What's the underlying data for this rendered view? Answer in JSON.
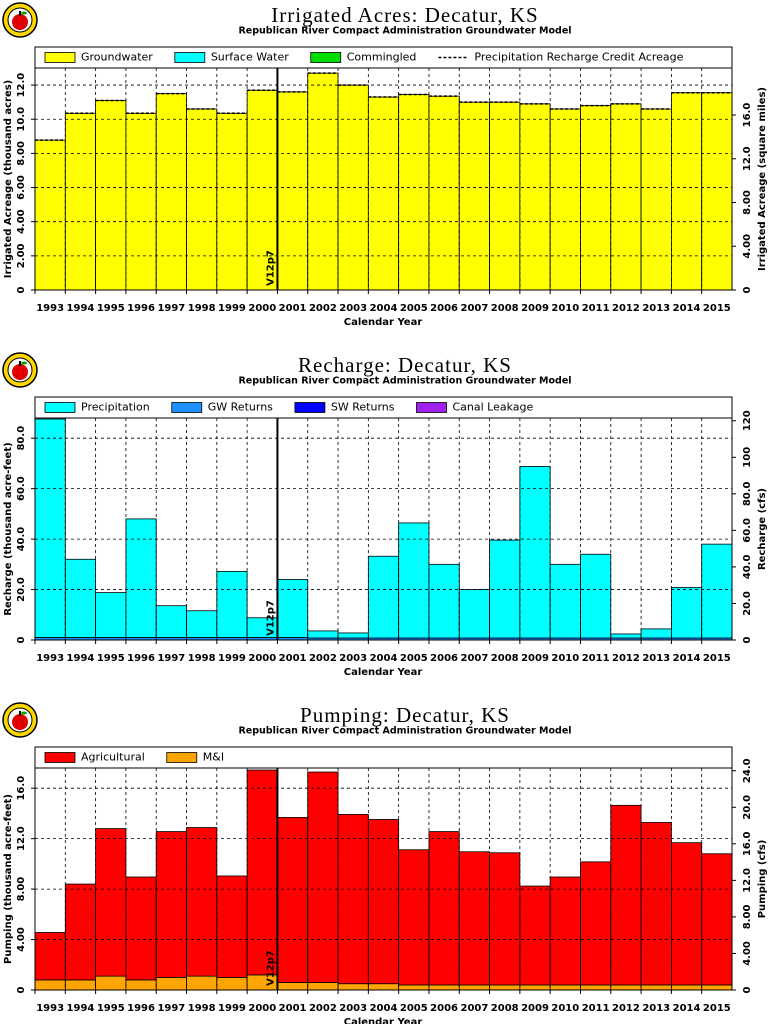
{
  "chart_data": [
    {
      "type": "bar",
      "stacked": true,
      "title": "Irrigated Acres: Decatur, KS",
      "subtitle": "Republican River Compact Administration Groundwater Model",
      "x_label": "Calendar Year",
      "y_label": "Irrigated Acreage (thousand acres)",
      "y2_label": "Irrigated Acreage (square miles)",
      "categories": [
        "1993",
        "1994",
        "1995",
        "1996",
        "1997",
        "1998",
        "1999",
        "2000",
        "2001",
        "2002",
        "2003",
        "2004",
        "2005",
        "2006",
        "2007",
        "2008",
        "2009",
        "2010",
        "2011",
        "2012",
        "2013",
        "2014",
        "2015"
      ],
      "series": [
        {
          "name": "Groundwater",
          "color": "#ffff00",
          "values": [
            8.78,
            10.35,
            11.1,
            10.35,
            11.5,
            10.6,
            10.35,
            11.7,
            11.6,
            12.7,
            12.0,
            11.3,
            11.45,
            11.35,
            11.0,
            11.0,
            10.9,
            10.6,
            10.8,
            10.9,
            10.6,
            11.55,
            11.55
          ]
        },
        {
          "name": "Surface Water",
          "color": "#00ffff",
          "values": [
            0,
            0,
            0,
            0,
            0,
            0,
            0,
            0,
            0,
            0,
            0,
            0,
            0,
            0,
            0,
            0,
            0,
            0,
            0,
            0,
            0,
            0,
            0
          ]
        },
        {
          "name": "Commingled",
          "color": "#00dd00",
          "values": [
            0,
            0,
            0,
            0,
            0,
            0,
            0,
            0,
            0,
            0,
            0,
            0,
            0,
            0,
            0,
            0,
            0,
            0,
            0,
            0,
            0,
            0,
            0
          ]
        },
        {
          "name": "Precipitation Recharge Credit Acreage",
          "color": "#000000",
          "line": "dashed",
          "values": [
            8.78,
            10.35,
            11.1,
            10.35,
            11.5,
            10.6,
            10.35,
            11.7,
            11.6,
            12.7,
            12.0,
            11.3,
            11.45,
            11.35,
            11.0,
            11.0,
            10.9,
            10.6,
            10.8,
            10.9,
            10.6,
            11.55,
            11.55
          ]
        }
      ],
      "ylim": [
        0,
        13
      ],
      "yticks": [
        0,
        {
          "value": 2,
          "label": "2.00"
        },
        {
          "value": 4,
          "label": "4.00"
        },
        {
          "value": 6,
          "label": "6.00"
        },
        {
          "value": 8,
          "label": "8.00"
        },
        {
          "value": 10,
          "label": "10.0"
        },
        {
          "value": 12,
          "label": "12.0"
        }
      ],
      "y2lim": [
        0,
        20.3
      ],
      "y2ticks": [
        0,
        {
          "value": 4,
          "label": "4.00"
        },
        {
          "value": 8,
          "label": "8.00"
        },
        {
          "value": 12,
          "label": "12.0"
        },
        {
          "value": 16,
          "label": "16.0"
        }
      ],
      "grid": true,
      "annotations": [
        {
          "text": "V12p7",
          "x": 2000.5
        }
      ]
    },
    {
      "type": "bar",
      "stacked": true,
      "title": "Recharge: Decatur, KS",
      "subtitle": "Republican River Compact Administration Groundwater Model",
      "x_label": "Calendar Year",
      "y_label": "Recharge (thousand acre-feet)",
      "y2_label": "Recharge (cfs)",
      "categories": [
        "1993",
        "1994",
        "1995",
        "1996",
        "1997",
        "1998",
        "1999",
        "2000",
        "2001",
        "2002",
        "2003",
        "2004",
        "2005",
        "2006",
        "2007",
        "2008",
        "2009",
        "2010",
        "2011",
        "2012",
        "2013",
        "2014",
        "2015"
      ],
      "series": [
        {
          "name": "Precipitation",
          "color": "#00ffff",
          "values": [
            86.6,
            31,
            17.8,
            47,
            12.6,
            10.6,
            26.2,
            7.8,
            23,
            2.8,
            2.0,
            32.4,
            45.6,
            29.2,
            19.2,
            38.8,
            68,
            29.2,
            33.2,
            1.6,
            3.6,
            20,
            37.2
          ]
        },
        {
          "name": "GW Returns",
          "color": "#1e90ff",
          "values": [
            1.0,
            1.0,
            1.0,
            1.0,
            1.0,
            1.0,
            1.0,
            1.0,
            1.0,
            0.8,
            0.8,
            0.8,
            0.8,
            0.8,
            0.8,
            0.8,
            0.8,
            0.8,
            0.8,
            0.8,
            0.8,
            0.8,
            0.8
          ]
        },
        {
          "name": "SW Returns",
          "color": "#0000ff",
          "values": [
            0,
            0,
            0,
            0,
            0,
            0,
            0,
            0,
            0,
            0,
            0,
            0,
            0,
            0,
            0,
            0,
            0,
            0,
            0,
            0,
            0,
            0,
            0
          ]
        },
        {
          "name": "Canal Leakage",
          "color": "#a020f0",
          "values": [
            0,
            0,
            0,
            0,
            0,
            0,
            0,
            0,
            0,
            0,
            0,
            0,
            0,
            0,
            0,
            0,
            0,
            0,
            0,
            0,
            0,
            0,
            0
          ]
        }
      ],
      "ylim": [
        0,
        88
      ],
      "yticks": [
        0,
        {
          "value": 20,
          "label": "20.0"
        },
        {
          "value": 40,
          "label": "40.0"
        },
        {
          "value": 60,
          "label": "60.0"
        },
        {
          "value": 80,
          "label": "80.0"
        }
      ],
      "y2lim": [
        0,
        121.5
      ],
      "y2ticks": [
        0,
        {
          "value": 20,
          "label": "20.0"
        },
        {
          "value": 40,
          "label": "40.0"
        },
        {
          "value": 60,
          "label": "60.0"
        },
        {
          "value": 80,
          "label": "80.0"
        },
        100,
        120
      ],
      "grid": true,
      "annotations": [
        {
          "text": "V12p7",
          "x": 2000.5
        }
      ]
    },
    {
      "type": "bar",
      "stacked": true,
      "title": "Pumping: Decatur, KS",
      "subtitle": "Republican River Compact Administration Groundwater Model",
      "x_label": "Calendar Year",
      "y_label": "Pumping (thousand acre-feet)",
      "y2_label": "Pumping (cfs)",
      "categories": [
        "1993",
        "1994",
        "1995",
        "1996",
        "1997",
        "1998",
        "1999",
        "2000",
        "2001",
        "2002",
        "2003",
        "2004",
        "2005",
        "2006",
        "2007",
        "2008",
        "2009",
        "2010",
        "2011",
        "2012",
        "2013",
        "2014",
        "2015"
      ],
      "series": [
        {
          "name": "Agricultural",
          "color": "#ff0000",
          "values": [
            3.76,
            7.6,
            11.7,
            8.16,
            11.56,
            11.78,
            8.04,
            16.24,
            13.08,
            16.68,
            13.42,
            13.02,
            10.72,
            12.16,
            10.56,
            10.48,
            7.84,
            8.56,
            9.76,
            14.24,
            12.88,
            11.28,
            10.4
          ]
        },
        {
          "name": "M&I",
          "color": "#ffa500",
          "values": [
            0.8,
            0.8,
            1.1,
            0.8,
            1.0,
            1.1,
            1.0,
            1.2,
            0.6,
            0.6,
            0.5,
            0.5,
            0.4,
            0.4,
            0.4,
            0.4,
            0.4,
            0.4,
            0.4,
            0.4,
            0.4,
            0.4,
            0.4
          ]
        }
      ],
      "ylim": [
        0,
        17.6
      ],
      "yticks": [
        0,
        {
          "value": 4,
          "label": "4.00"
        },
        {
          "value": 8,
          "label": "8.00"
        },
        {
          "value": 12,
          "label": "12.0"
        },
        {
          "value": 16,
          "label": "16.0"
        }
      ],
      "y2lim": [
        0,
        24.3
      ],
      "y2ticks": [
        0,
        {
          "value": 4,
          "label": "4.00"
        },
        {
          "value": 8,
          "label": "8.00"
        },
        {
          "value": 12,
          "label": "12.0"
        },
        {
          "value": 16,
          "label": "16.0"
        },
        {
          "value": 20,
          "label": "20.0"
        },
        {
          "value": 24,
          "label": "24.0"
        }
      ],
      "grid": true,
      "annotations": [
        {
          "text": "V12p7",
          "x": 2000.5
        }
      ]
    }
  ]
}
